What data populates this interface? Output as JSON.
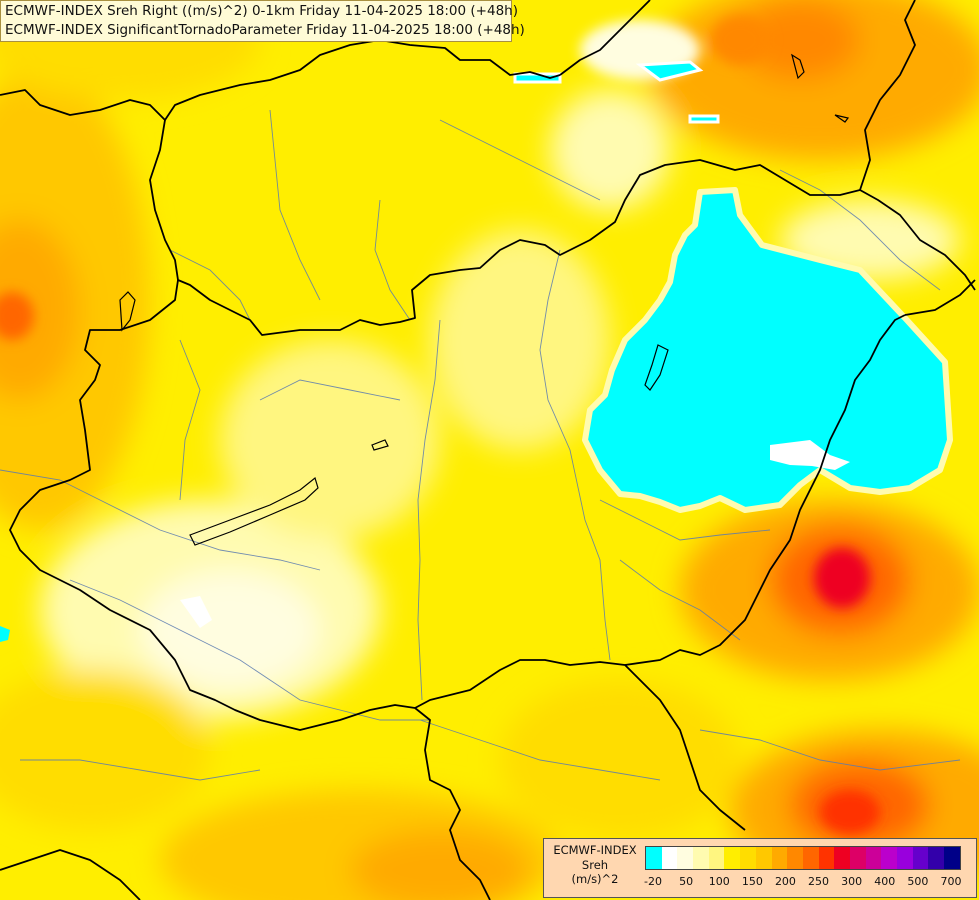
{
  "header": {
    "line1": "ECMWF-INDEX Sreh Right ((m/s)^2) 0-1km Friday 11-04-2025 18:00 (+48h)",
    "line2": "ECMWF-INDEX SignificantTornadoParameter Friday 11-04-2025 18:00 (+48h)"
  },
  "legend": {
    "title_lines": [
      "ECMWF-INDEX",
      "Sreh",
      "(m/s)^2"
    ],
    "colors": [
      "#00ffff",
      "#ffffff",
      "#fffde0",
      "#fffbb0",
      "#fff680",
      "#ffee00",
      "#ffdd00",
      "#ffc800",
      "#ffaa00",
      "#ff8800",
      "#ff6600",
      "#ff3300",
      "#ee0022",
      "#dd0066",
      "#cc0099",
      "#bb00cc",
      "#9900dd",
      "#6600cc",
      "#3300aa",
      "#000088"
    ],
    "ticks": [
      "-20",
      "50",
      "100",
      "150",
      "200",
      "250",
      "300",
      "400",
      "500",
      "700"
    ]
  },
  "colors": {
    "border": "#000000",
    "river": "#5a7ab0"
  }
}
